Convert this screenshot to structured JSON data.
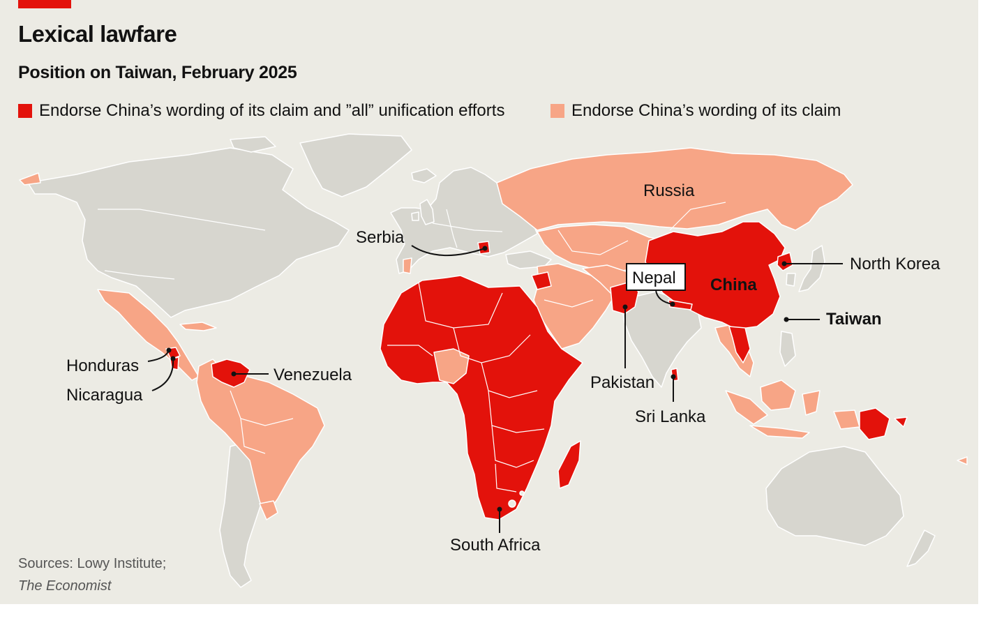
{
  "header": {
    "title": "Lexical lawfare",
    "subtitle": "Position on Taiwan, February 2025"
  },
  "legend": [
    {
      "label": "Endorse China’s wording of its claim and ”all” unification efforts",
      "color": "#e3120b"
    },
    {
      "label": "Endorse China’s wording of its claim",
      "color": "#f7a586"
    }
  ],
  "colors": {
    "background": "#ecebe4",
    "no_endorsement": "#d7d6cf",
    "claim_and_unification": "#e3120b",
    "claim_only": "#f7a586",
    "border": "#ffffff"
  },
  "map": {
    "labels": {
      "russia": "Russia",
      "serbia": "Serbia",
      "nepal": "Nepal",
      "china": "China",
      "north_korea": "North Korea",
      "taiwan": "Taiwan",
      "pakistan": "Pakistan",
      "sri_lanka": "Sri Lanka",
      "honduras": "Honduras",
      "nicaragua": "Nicaragua",
      "venezuela": "Venezuela",
      "south_africa": "South Africa"
    }
  },
  "footer": {
    "source_line": "Sources: Lowy Institute;",
    "source_italic": "The Economist"
  }
}
